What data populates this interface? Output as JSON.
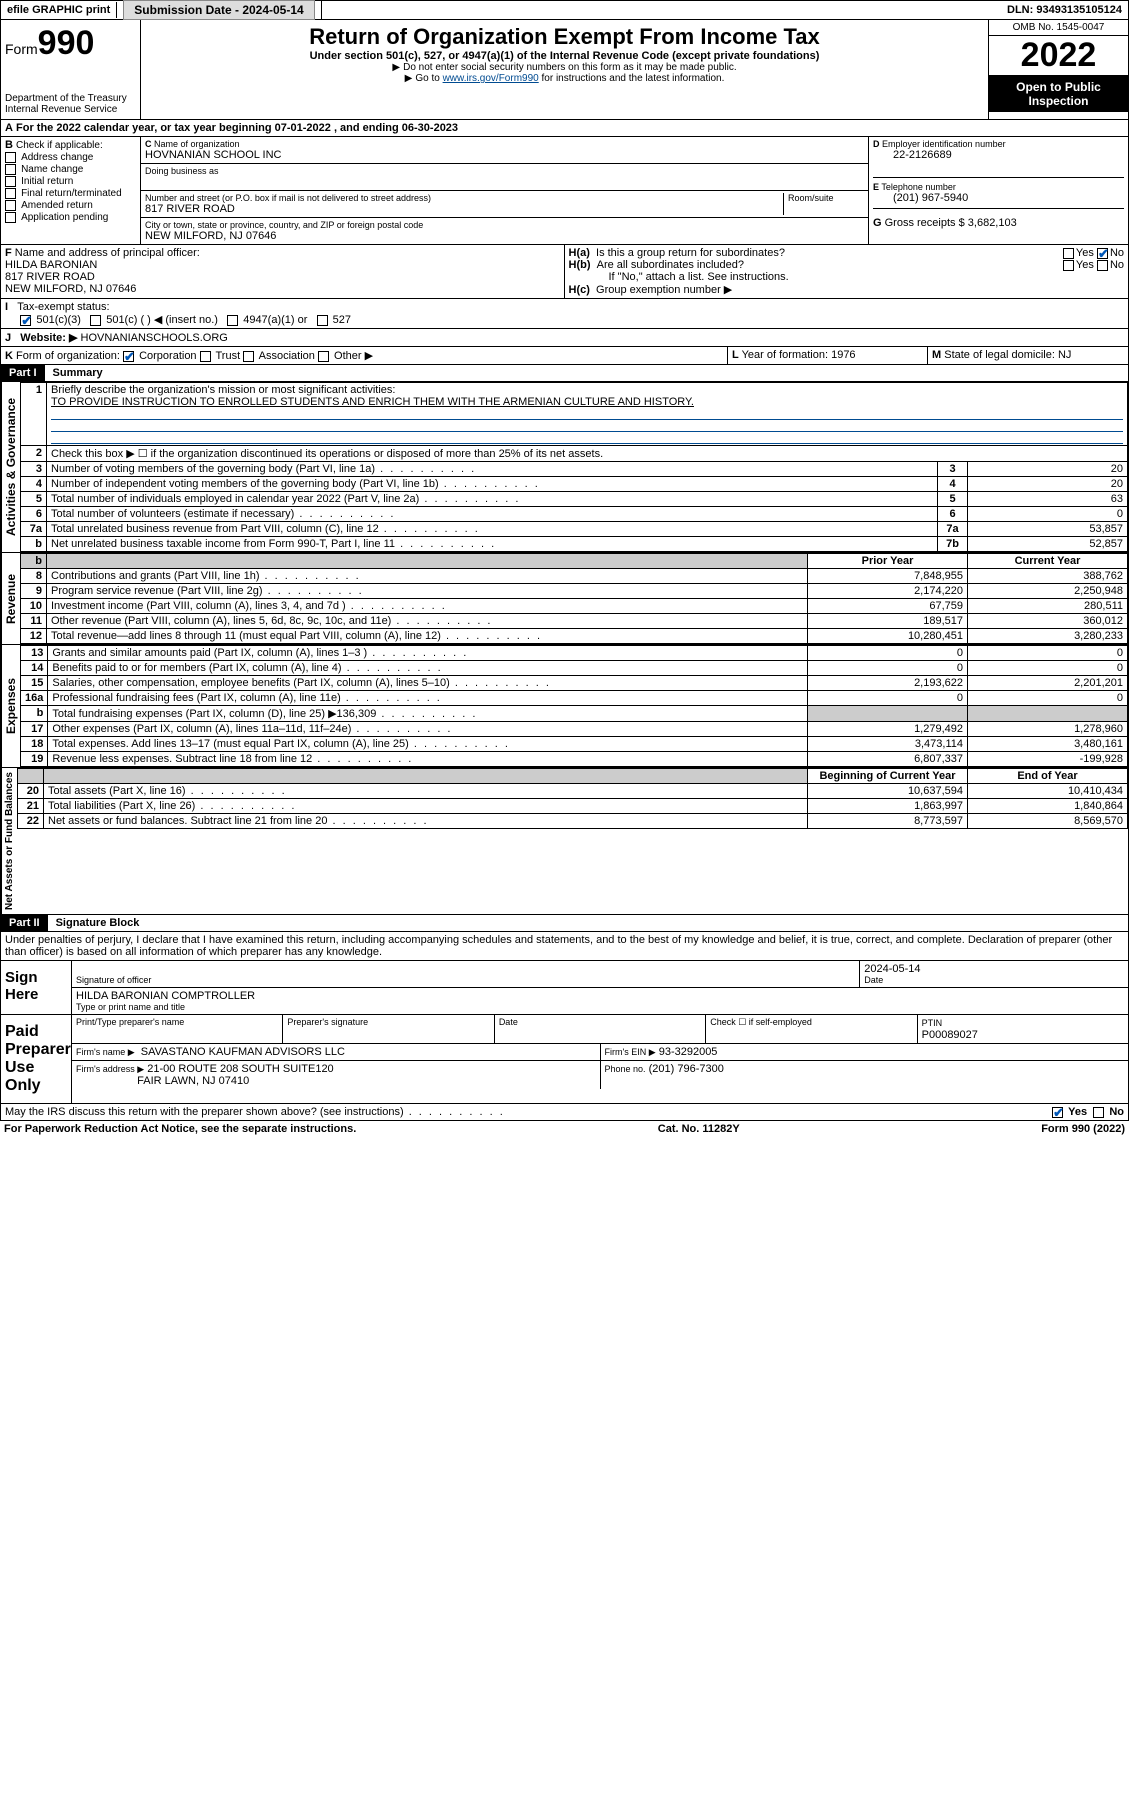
{
  "topbar": {
    "efile": "efile GRAPHIC print",
    "submission_label": "Submission Date - 2024-05-14",
    "dln": "DLN: 93493135105124"
  },
  "header": {
    "form_word": "Form",
    "form_num": "990",
    "dept": "Department of the Treasury",
    "irs": "Internal Revenue Service",
    "title": "Return of Organization Exempt From Income Tax",
    "sub1": "Under section 501(c), 527, or 4947(a)(1) of the Internal Revenue Code (except private foundations)",
    "sub2": "Do not enter social security numbers on this form as it may be made public.",
    "sub3_pre": "Go to ",
    "sub3_link": "www.irs.gov/Form990",
    "sub3_post": " for instructions and the latest information.",
    "omb": "OMB No. 1545-0047",
    "year": "2022",
    "open": "Open to Public Inspection"
  },
  "A": {
    "text": "For the 2022 calendar year, or tax year beginning 07-01-2022   , and ending 06-30-2023"
  },
  "B": {
    "label": "Check if applicable:",
    "opts": [
      "Address change",
      "Name change",
      "Initial return",
      "Final return/terminated",
      "Amended return",
      "Application pending"
    ]
  },
  "C": {
    "name_label": "Name of organization",
    "name": "HOVNANIAN SCHOOL INC",
    "dba_label": "Doing business as",
    "addr_label": "Number and street (or P.O. box if mail is not delivered to street address)",
    "room_label": "Room/suite",
    "addr": "817 RIVER ROAD",
    "city_label": "City or town, state or province, country, and ZIP or foreign postal code",
    "city": "NEW MILFORD, NJ  07646"
  },
  "D": {
    "label": "Employer identification number",
    "val": "22-2126689"
  },
  "E": {
    "label": "Telephone number",
    "val": "(201) 967-5940"
  },
  "G": {
    "label": "Gross receipts $",
    "val": "3,682,103"
  },
  "F": {
    "label": "Name and address of principal officer:",
    "line1": "HILDA BARONIAN",
    "line2": "817 RIVER ROAD",
    "line3": "NEW MILFORD, NJ  07646"
  },
  "H": {
    "a": "Is this a group return for subordinates?",
    "b": "Are all subordinates included?",
    "b_note": "If \"No,\" attach a list. See instructions.",
    "c": "Group exemption number ▶",
    "yes": "Yes",
    "no": "No"
  },
  "I": {
    "label": "Tax-exempt status:",
    "o1": "501(c)(3)",
    "o2": "501(c) (  ) ◀ (insert no.)",
    "o3": "4947(a)(1) or",
    "o4": "527"
  },
  "J": {
    "label": "Website: ▶",
    "val": "HOVNANIANSCHOOLS.ORG"
  },
  "K": {
    "label": "Form of organization:",
    "o1": "Corporation",
    "o2": "Trust",
    "o3": "Association",
    "o4": "Other ▶"
  },
  "L": {
    "label": "Year of formation:",
    "val": "1976"
  },
  "M": {
    "label": "State of legal domicile:",
    "val": "NJ"
  },
  "part1": {
    "hdr": "Part I",
    "title": "Summary",
    "l1": "Briefly describe the organization's mission or most significant activities:",
    "l1v": "TO PROVIDE INSTRUCTION TO ENROLLED STUDENTS AND ENRICH THEM WITH THE ARMENIAN CULTURE AND HISTORY.",
    "l2": "Check this box ▶ ☐  if the organization discontinued its operations or disposed of more than 25% of its net assets.",
    "rows_gov": [
      {
        "n": "3",
        "d": "Number of voting members of the governing body (Part VI, line 1a)",
        "box": "3",
        "v": "20"
      },
      {
        "n": "4",
        "d": "Number of independent voting members of the governing body (Part VI, line 1b)",
        "box": "4",
        "v": "20"
      },
      {
        "n": "5",
        "d": "Total number of individuals employed in calendar year 2022 (Part V, line 2a)",
        "box": "5",
        "v": "63"
      },
      {
        "n": "6",
        "d": "Total number of volunteers (estimate if necessary)",
        "box": "6",
        "v": "0"
      },
      {
        "n": "7a",
        "d": "Total unrelated business revenue from Part VIII, column (C), line 12",
        "box": "7a",
        "v": "53,857"
      },
      {
        "n": "b",
        "d": "Net unrelated business taxable income from Form 990-T, Part I, line 11",
        "box": "7b",
        "v": "52,857"
      }
    ],
    "col_prior": "Prior Year",
    "col_current": "Current Year",
    "rows_rev": [
      {
        "n": "8",
        "d": "Contributions and grants (Part VIII, line 1h)",
        "p": "7,848,955",
        "c": "388,762"
      },
      {
        "n": "9",
        "d": "Program service revenue (Part VIII, line 2g)",
        "p": "2,174,220",
        "c": "2,250,948"
      },
      {
        "n": "10",
        "d": "Investment income (Part VIII, column (A), lines 3, 4, and 7d )",
        "p": "67,759",
        "c": "280,511"
      },
      {
        "n": "11",
        "d": "Other revenue (Part VIII, column (A), lines 5, 6d, 8c, 9c, 10c, and 11e)",
        "p": "189,517",
        "c": "360,012"
      },
      {
        "n": "12",
        "d": "Total revenue—add lines 8 through 11 (must equal Part VIII, column (A), line 12)",
        "p": "10,280,451",
        "c": "3,280,233"
      }
    ],
    "rows_exp": [
      {
        "n": "13",
        "d": "Grants and similar amounts paid (Part IX, column (A), lines 1–3 )",
        "p": "0",
        "c": "0"
      },
      {
        "n": "14",
        "d": "Benefits paid to or for members (Part IX, column (A), line 4)",
        "p": "0",
        "c": "0"
      },
      {
        "n": "15",
        "d": "Salaries, other compensation, employee benefits (Part IX, column (A), lines 5–10)",
        "p": "2,193,622",
        "c": "2,201,201"
      },
      {
        "n": "16a",
        "d": "Professional fundraising fees (Part IX, column (A), line 11e)",
        "p": "0",
        "c": "0"
      },
      {
        "n": "b",
        "d": "Total fundraising expenses (Part IX, column (D), line 25) ▶136,309",
        "p": "",
        "c": "",
        "shade": true
      },
      {
        "n": "17",
        "d": "Other expenses (Part IX, column (A), lines 11a–11d, 11f–24e)",
        "p": "1,279,492",
        "c": "1,278,960"
      },
      {
        "n": "18",
        "d": "Total expenses. Add lines 13–17 (must equal Part IX, column (A), line 25)",
        "p": "3,473,114",
        "c": "3,480,161"
      },
      {
        "n": "19",
        "d": "Revenue less expenses. Subtract line 18 from line 12",
        "p": "6,807,337",
        "c": "-199,928"
      }
    ],
    "col_begin": "Beginning of Current Year",
    "col_end": "End of Year",
    "rows_net": [
      {
        "n": "20",
        "d": "Total assets (Part X, line 16)",
        "p": "10,637,594",
        "c": "10,410,434"
      },
      {
        "n": "21",
        "d": "Total liabilities (Part X, line 26)",
        "p": "1,863,997",
        "c": "1,840,864"
      },
      {
        "n": "22",
        "d": "Net assets or fund balances. Subtract line 21 from line 20",
        "p": "8,773,597",
        "c": "8,569,570"
      }
    ],
    "vtab_gov": "Activities & Governance",
    "vtab_rev": "Revenue",
    "vtab_exp": "Expenses",
    "vtab_net": "Net Assets or Fund Balances"
  },
  "part2": {
    "hdr": "Part II",
    "title": "Signature Block",
    "decl": "Under penalties of perjury, I declare that I have examined this return, including accompanying schedules and statements, and to the best of my knowledge and belief, it is true, correct, and complete. Declaration of preparer (other than officer) is based on all information of which preparer has any knowledge.",
    "sign_here": "Sign Here",
    "sig_officer": "Signature of officer",
    "sig_date": "Date",
    "sig_date_val": "2024-05-14",
    "name_title_lbl": "Type or print name and title",
    "name_title": "HILDA BARONIAN  COMPTROLLER",
    "paid": "Paid Preparer Use Only",
    "prep_name_lbl": "Print/Type preparer's name",
    "prep_sig_lbl": "Preparer's signature",
    "date_lbl": "Date",
    "check_if": "Check ☐ if self-employed",
    "ptin_lbl": "PTIN",
    "ptin": "P00089027",
    "firm_name_lbl": "Firm's name   ▶",
    "firm_name": "SAVASTANO KAUFMAN ADVISORS LLC",
    "firm_ein_lbl": "Firm's EIN ▶",
    "firm_ein": "93-3292005",
    "firm_addr_lbl": "Firm's address ▶",
    "firm_addr1": "21-00 ROUTE 208 SOUTH SUITE120",
    "firm_addr2": "FAIR LAWN, NJ  07410",
    "phone_lbl": "Phone no.",
    "phone": "(201) 796-7300",
    "may_irs": "May the IRS discuss this return with the preparer shown above? (see instructions)"
  },
  "footer": {
    "left": "For Paperwork Reduction Act Notice, see the separate instructions.",
    "mid": "Cat. No. 11282Y",
    "right": "Form 990 (2022)"
  }
}
